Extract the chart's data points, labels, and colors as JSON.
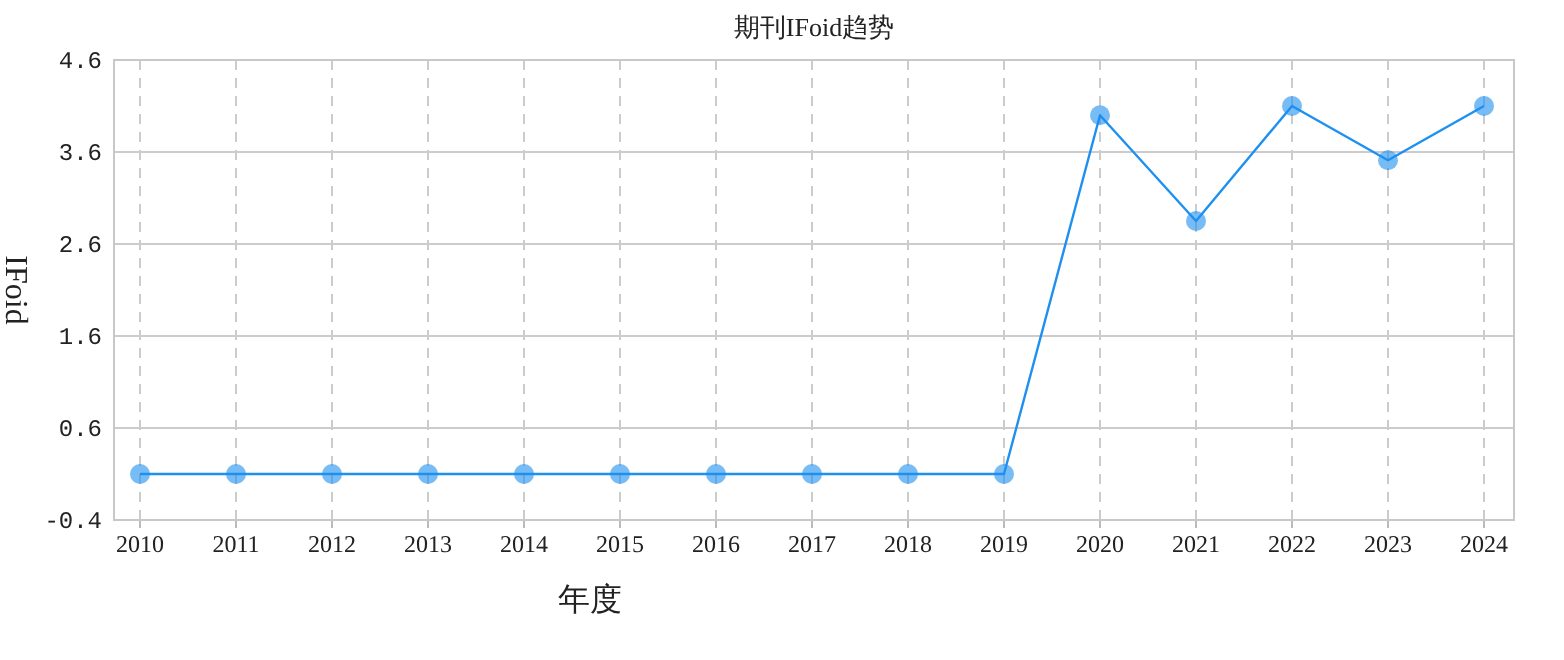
{
  "chart_data": {
    "type": "line",
    "title": "期刊IFoid趋势",
    "xlabel": "年度",
    "ylabel": "IFoid",
    "categories": [
      "2010",
      "2011",
      "2012",
      "2013",
      "2014",
      "2015",
      "2016",
      "2017",
      "2018",
      "2019",
      "2020",
      "2021",
      "2022",
      "2023",
      "2024"
    ],
    "series": [
      {
        "color": "#1e90f0",
        "values": [
          0.1,
          0.1,
          0.1,
          0.1,
          0.1,
          0.1,
          0.1,
          0.1,
          0.1,
          0.1,
          4.0,
          2.85,
          4.1,
          3.51,
          4.1
        ]
      }
    ],
    "ylim": [
      -0.4,
      4.6
    ],
    "yticks": [
      -0.4,
      0.6,
      1.6,
      2.6,
      3.6,
      4.6
    ],
    "grid": true,
    "marker": "circle"
  }
}
